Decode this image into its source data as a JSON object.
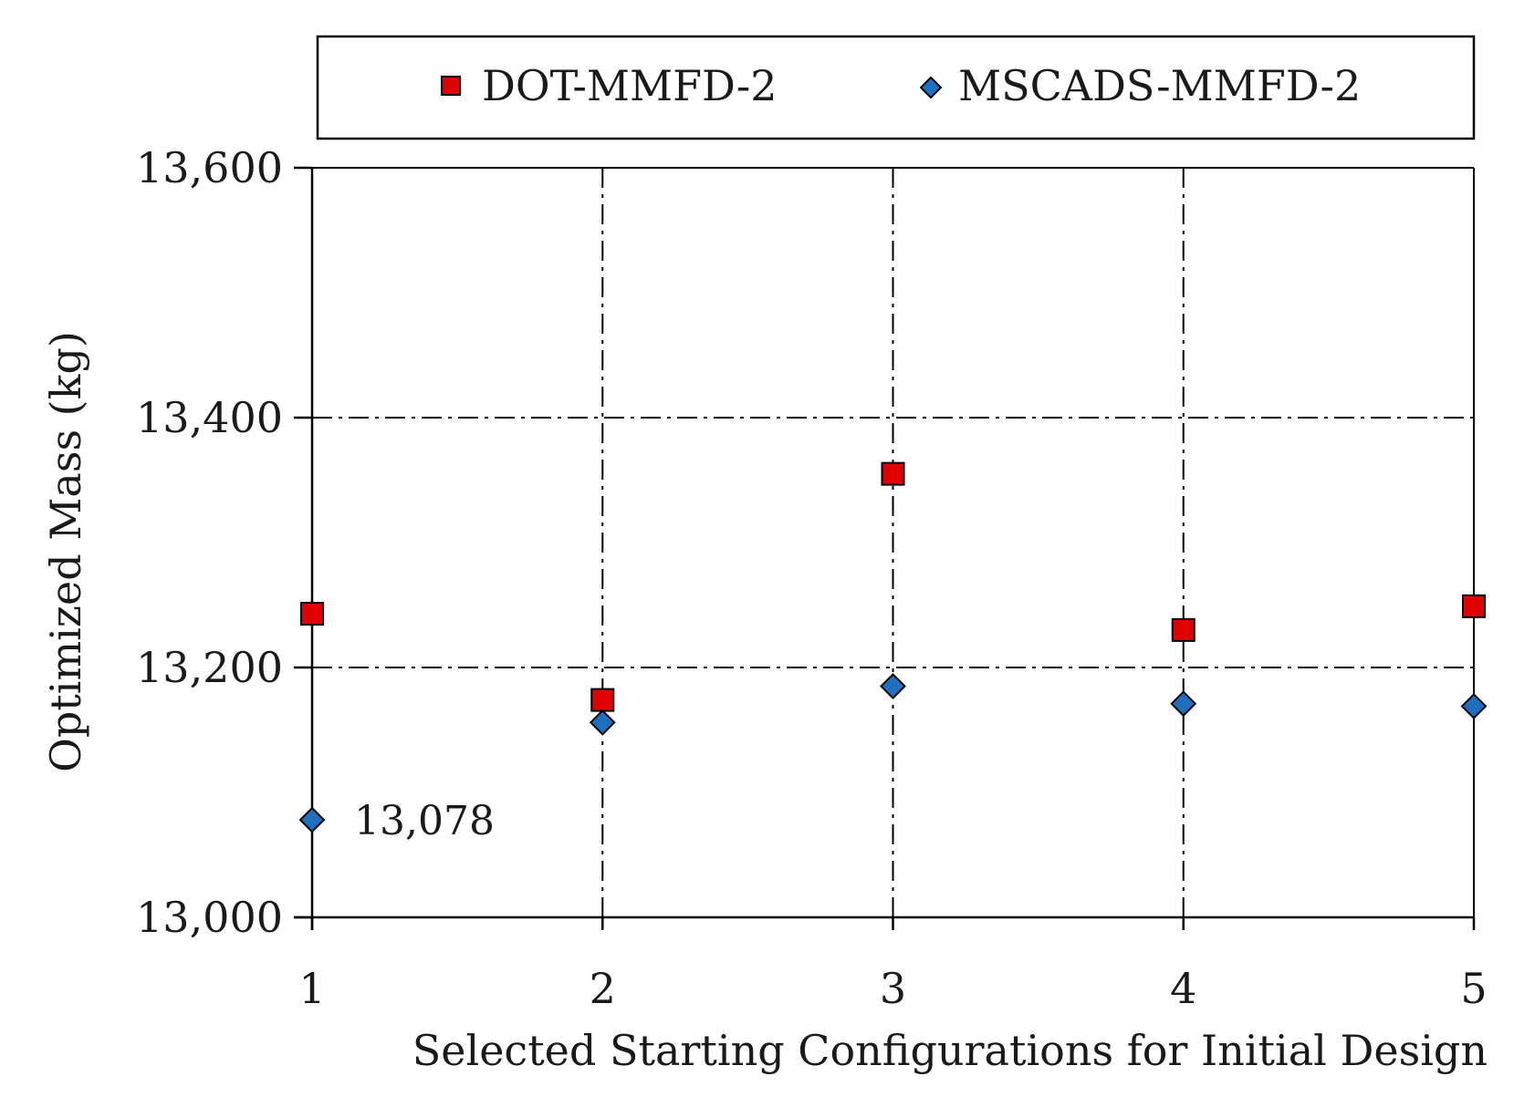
{
  "chart_data": {
    "type": "scatter",
    "title": "",
    "xlabel": "Selected Starting Configurations for Initial Design",
    "ylabel": "Optimized Mass (kg)",
    "x": [
      1,
      2,
      3,
      4,
      5
    ],
    "x_tick_labels": [
      "1",
      "2",
      "3",
      "4",
      "5"
    ],
    "xlim": [
      1,
      5
    ],
    "ylim": [
      13000,
      13600
    ],
    "y_ticks": [
      13000,
      13200,
      13400,
      13600
    ],
    "y_tick_labels": [
      "13,000",
      "13,200",
      "13,400",
      "13,600"
    ],
    "grid": true,
    "legend_position": "top",
    "series": [
      {
        "name": "DOT-MMFD-2",
        "marker": "square",
        "color": "#e00000",
        "values": [
          13243,
          13174,
          13355,
          13230,
          13249
        ]
      },
      {
        "name": "MSCADS-MMFD-2",
        "marker": "diamond",
        "color": "#1f6fbf",
        "values": [
          13078,
          13156,
          13185,
          13171,
          13169
        ]
      }
    ],
    "annotations": [
      {
        "series": 1,
        "point_index": 0,
        "text": "13,078"
      }
    ]
  }
}
